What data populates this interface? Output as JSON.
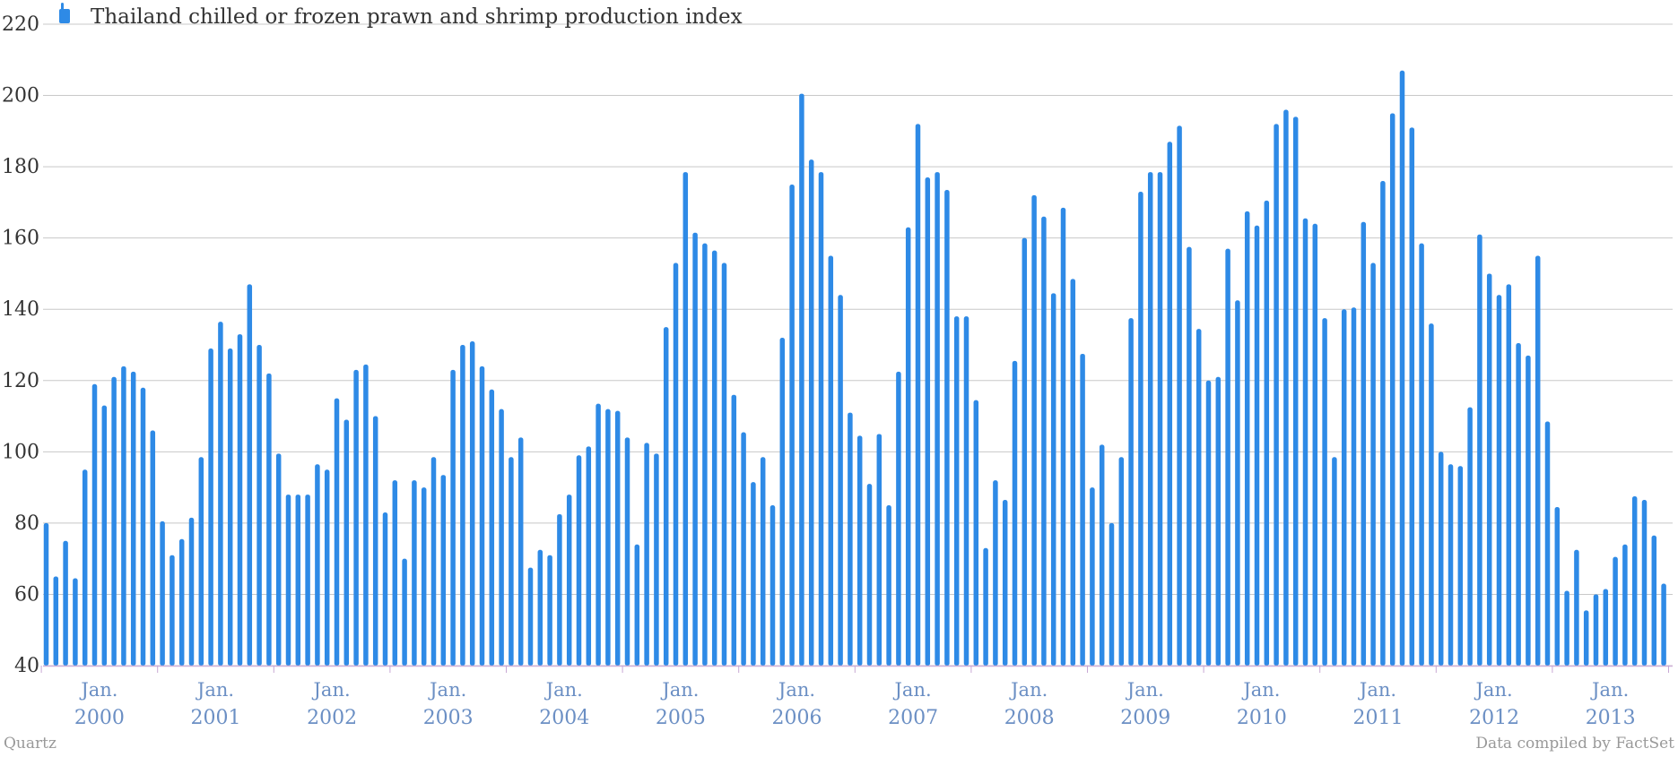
{
  "chart_data": {
    "type": "bar",
    "title": "",
    "xlabel": "",
    "ylabel": "",
    "ylim": [
      40,
      220
    ],
    "yticks": [
      40,
      60,
      80,
      100,
      120,
      140,
      160,
      180,
      200,
      220
    ],
    "grid": true,
    "legend_position": "top-left",
    "bar_color": "#2e8ae6",
    "series": [
      {
        "name": "Thailand chilled or frozen prawn and shrimp production index",
        "start": "2000-01",
        "frequency": "monthly",
        "values": [
          80,
          65,
          75,
          64.5,
          95,
          119,
          113,
          121,
          124,
          122.5,
          118,
          106,
          80.5,
          71,
          75.5,
          81.5,
          98.5,
          129,
          136.5,
          129,
          133,
          147,
          130,
          122,
          99.5,
          88,
          88,
          88,
          96.5,
          95,
          115,
          109,
          123,
          124.5,
          110,
          83,
          92,
          70,
          92,
          90,
          98.5,
          93.5,
          123,
          130,
          131,
          124,
          117.5,
          112,
          98.5,
          104,
          67.5,
          72.5,
          71,
          82.5,
          88,
          99,
          101.5,
          113.5,
          112,
          111.5,
          104,
          74,
          102.5,
          99.5,
          135,
          153,
          178.5,
          161.5,
          158.5,
          156.5,
          153,
          116,
          105.5,
          91.5,
          98.5,
          85,
          132,
          175,
          200.5,
          182,
          178.5,
          155,
          144,
          111,
          104.5,
          91,
          105,
          85,
          122.5,
          163,
          192,
          177,
          178.5,
          173.5,
          138,
          138,
          114.5,
          73,
          92,
          86.5,
          125.5,
          160,
          172,
          166,
          144.5,
          168.5,
          148.5,
          127.5,
          90,
          102,
          80,
          98.5,
          137.5,
          173,
          178.5,
          178.5,
          187,
          191.5,
          157.5,
          134.5,
          120,
          121,
          157,
          142.5,
          167.5,
          163.5,
          170.5,
          192,
          196,
          194,
          165.5,
          164,
          137.5,
          98.5,
          140,
          140.5,
          164.5,
          153,
          176,
          195,
          207,
          191,
          158.5,
          136,
          100,
          96.5,
          96,
          112.5,
          161,
          150,
          144,
          147,
          130.5,
          127,
          155,
          108.5,
          84.5,
          61,
          72.5,
          55.5,
          60,
          61.5,
          70.5,
          74,
          87.5,
          86.5,
          76.5,
          63
        ]
      }
    ],
    "x_tick_labels": [
      {
        "month": "Jan.",
        "year": "2000"
      },
      {
        "month": "Jan.",
        "year": "2001"
      },
      {
        "month": "Jan.",
        "year": "2002"
      },
      {
        "month": "Jan.",
        "year": "2003"
      },
      {
        "month": "Jan.",
        "year": "2004"
      },
      {
        "month": "Jan.",
        "year": "2005"
      },
      {
        "month": "Jan.",
        "year": "2006"
      },
      {
        "month": "Jan.",
        "year": "2007"
      },
      {
        "month": "Jan.",
        "year": "2008"
      },
      {
        "month": "Jan.",
        "year": "2009"
      },
      {
        "month": "Jan.",
        "year": "2010"
      },
      {
        "month": "Jan.",
        "year": "2011"
      },
      {
        "month": "Jan.",
        "year": "2012"
      },
      {
        "month": "Jan.",
        "year": "2013"
      }
    ]
  },
  "footer": {
    "source_left": "Quartz",
    "source_right": "Data compiled by FactSet"
  },
  "colors": {
    "bar": "#2e8ae6",
    "grid": "#c8c8c8",
    "axis_label": "#6b8fc4"
  }
}
